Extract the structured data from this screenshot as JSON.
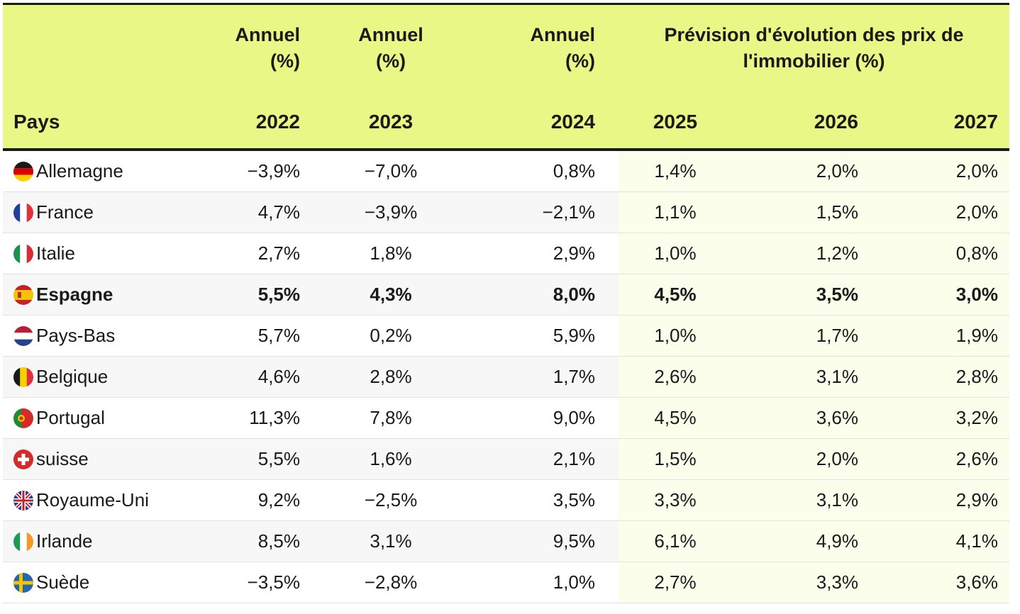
{
  "chart_data": {
    "type": "table",
    "header": {
      "group_labels": [
        "Annuel\n(%)",
        "Annuel\n(%)",
        "Annuel\n(%)",
        "Prévision d'évolution des prix de l'immobilier (%)"
      ],
      "country_label": "Pays",
      "years": [
        "2022",
        "2023",
        "2024",
        "2025",
        "2026",
        "2027"
      ]
    },
    "rows": [
      {
        "country": "Allemagne",
        "flag": "germany-flag-icon",
        "values": [
          "−3,9%",
          "−7,0%",
          "0,8%",
          "1,4%",
          "2,0%",
          "2,0%"
        ],
        "bold": false
      },
      {
        "country": "France",
        "flag": "france-flag-icon",
        "values": [
          "4,7%",
          "−3,9%",
          "−2,1%",
          "1,1%",
          "1,5%",
          "2,0%"
        ],
        "bold": false
      },
      {
        "country": "Italie",
        "flag": "italy-flag-icon",
        "values": [
          "2,7%",
          "1,8%",
          "2,9%",
          "1,0%",
          "1,2%",
          "0,8%"
        ],
        "bold": false
      },
      {
        "country": "Espagne",
        "flag": "spain-flag-icon",
        "values": [
          "5,5%",
          "4,3%",
          "8,0%",
          "4,5%",
          "3,5%",
          "3,0%"
        ],
        "bold": true
      },
      {
        "country": "Pays-Bas",
        "flag": "netherlands-flag-icon",
        "values": [
          "5,7%",
          "0,2%",
          "5,9%",
          "1,0%",
          "1,7%",
          "1,9%"
        ],
        "bold": false
      },
      {
        "country": "Belgique",
        "flag": "belgium-flag-icon",
        "values": [
          "4,6%",
          "2,8%",
          "1,7%",
          "2,6%",
          "3,1%",
          "2,8%"
        ],
        "bold": false
      },
      {
        "country": "Portugal",
        "flag": "portugal-flag-icon",
        "values": [
          "11,3%",
          "7,8%",
          "9,0%",
          "4,5%",
          "3,6%",
          "3,2%"
        ],
        "bold": false
      },
      {
        "country": "suisse",
        "flag": "switzerland-flag-icon",
        "values": [
          "5,5%",
          "1,6%",
          "2,1%",
          "1,5%",
          "2,0%",
          "2,6%"
        ],
        "bold": false
      },
      {
        "country": "Royaume-Uni",
        "flag": "uk-flag-icon",
        "values": [
          "9,2%",
          "−2,5%",
          "3,5%",
          "3,3%",
          "3,1%",
          "2,9%"
        ],
        "bold": false
      },
      {
        "country": "Irlande",
        "flag": "ireland-flag-icon",
        "values": [
          "8,5%",
          "3,1%",
          "9,5%",
          "6,1%",
          "4,9%",
          "4,1%"
        ],
        "bold": false
      },
      {
        "country": "Suède",
        "flag": "sweden-flag-icon",
        "values": [
          "−3,5%",
          "−2,8%",
          "1,0%",
          "2,7%",
          "3,3%",
          "3,6%"
        ],
        "bold": false
      }
    ],
    "colors": {
      "header_bg": "#e8f786",
      "forecast_bg": "#fafeea",
      "alt_row_bg": "#f7f7f7"
    }
  }
}
